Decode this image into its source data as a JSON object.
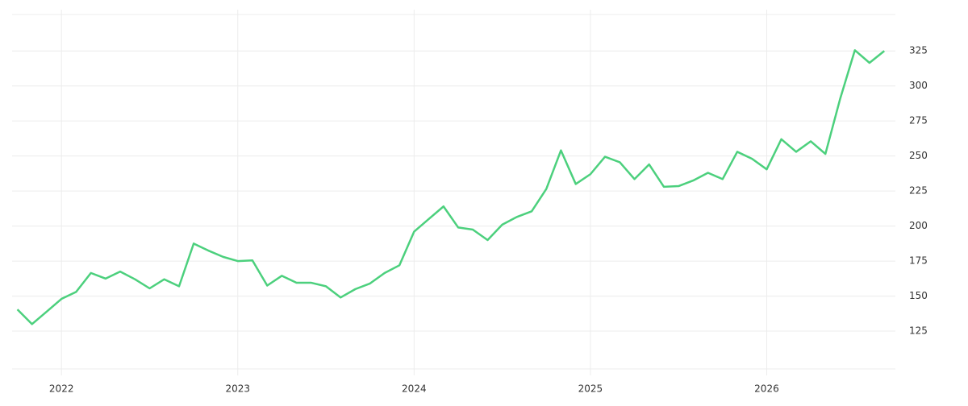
{
  "chart_data": {
    "type": "line",
    "x": [
      2021.75,
      2021.833,
      2021.917,
      2022,
      2022.083,
      2022.167,
      2022.25,
      2022.333,
      2022.417,
      2022.5,
      2022.583,
      2022.667,
      2022.75,
      2022.833,
      2022.917,
      2023,
      2023.083,
      2023.167,
      2023.25,
      2023.333,
      2023.417,
      2023.5,
      2023.583,
      2023.667,
      2023.75,
      2023.833,
      2023.917,
      2024,
      2024.083,
      2024.167,
      2024.25,
      2024.333,
      2024.417,
      2024.5,
      2024.583,
      2024.667,
      2024.75,
      2024.833,
      2024.917,
      2025,
      2025.083,
      2025.167,
      2025.25,
      2025.333,
      2025.417,
      2025.5,
      2025.583,
      2025.667,
      2025.75,
      2025.833,
      2025.917,
      2026,
      2026.083,
      2026.167,
      2026.25,
      2026.333,
      2026.417,
      2026.5,
      2026.583,
      2026.667
    ],
    "series": [
      {
        "color": "#4cd07d",
        "values": [
          140.5,
          130,
          139,
          148,
          153,
          166.5,
          162.5,
          167.5,
          162,
          155.5,
          162,
          157,
          187.5,
          182.5,
          178,
          175,
          175.5,
          157.5,
          164.5,
          159.5,
          159.5,
          157,
          149,
          155,
          159,
          166.5,
          172,
          196,
          205,
          214,
          199,
          197.5,
          190,
          201,
          206.5,
          210.5,
          226.5,
          254,
          230,
          237,
          249.5,
          245.5,
          233.5,
          244,
          228,
          228.5,
          232.5,
          238,
          233.5,
          253,
          248,
          240.5,
          262,
          253,
          260.5,
          251.5,
          291,
          325.5,
          316.5,
          325
        ]
      }
    ],
    "xlim": [
      2021.72,
      2026.73
    ],
    "xticks": [
      2022,
      2023,
      2024,
      2025,
      2026
    ],
    "ylim": [
      98,
      351
    ],
    "yticks": [
      125,
      150,
      175,
      200,
      225,
      250,
      275,
      300,
      325
    ],
    "grid": true
  }
}
